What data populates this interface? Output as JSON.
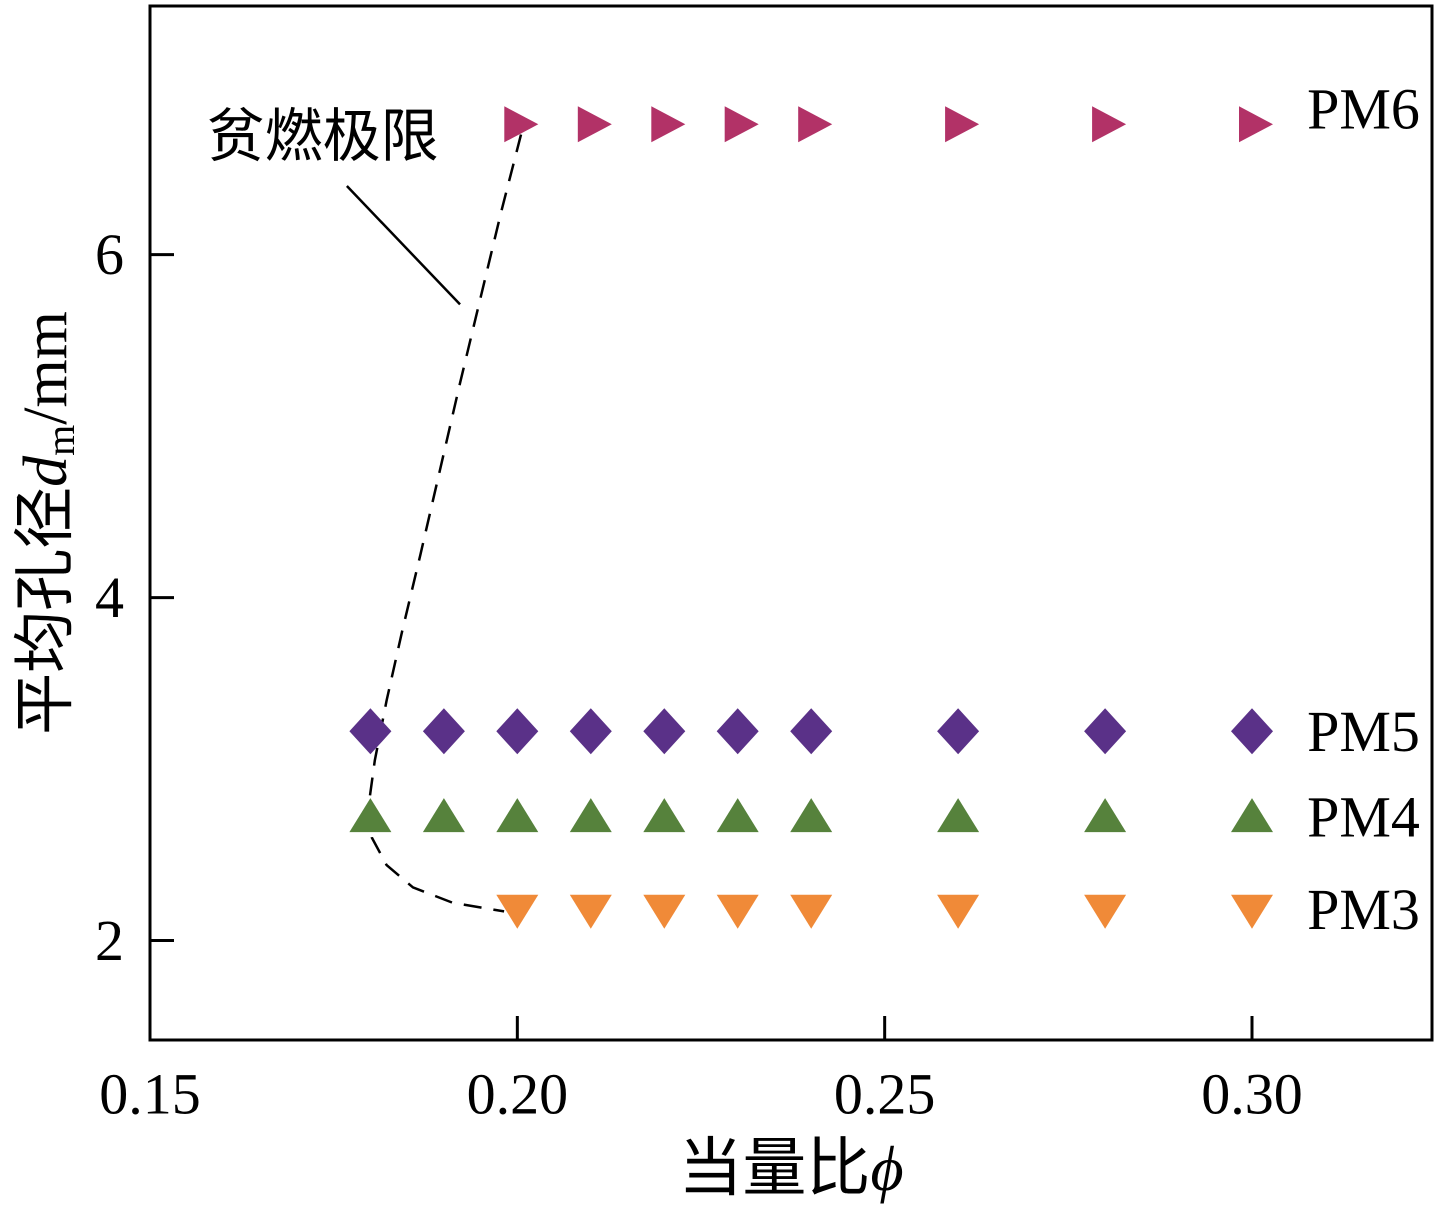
{
  "chart_data": {
    "type": "scatter",
    "title": "",
    "xlabel": {
      "prefix": "当量比",
      "symbol": "ϕ",
      "full": "当量比ϕ"
    },
    "ylabel": {
      "prefix": "平均孔径",
      "var": "d",
      "sub": "m",
      "unit": "/mm",
      "full": "平均孔径dm/mm"
    },
    "xlim": [
      0.15,
      0.3245
    ],
    "ylim": [
      1.42,
      7.45
    ],
    "grid": false,
    "frame": true,
    "xticks": [
      {
        "value": 0.15,
        "label": "0.15"
      },
      {
        "value": 0.2,
        "label": "0.20"
      },
      {
        "value": 0.25,
        "label": "0.25"
      },
      {
        "value": 0.3,
        "label": "0.30"
      }
    ],
    "yticks": [
      {
        "value": 2,
        "label": "2"
      },
      {
        "value": 4,
        "label": "4"
      },
      {
        "value": 6,
        "label": "6"
      }
    ],
    "series": [
      {
        "name": "PM6",
        "marker": "triangle-right",
        "color": "#b23267",
        "y": 6.76,
        "x": [
          0.2,
          0.21,
          0.22,
          0.23,
          0.24,
          0.26,
          0.28,
          0.3
        ],
        "label": "PM6",
        "label_x": 0.3075,
        "label_y": 6.85
      },
      {
        "name": "PM5",
        "marker": "diamond",
        "color": "#5a3188",
        "y": 3.22,
        "x": [
          0.18,
          0.19,
          0.2,
          0.21,
          0.22,
          0.23,
          0.24,
          0.26,
          0.28,
          0.3
        ],
        "label": "PM5",
        "label_x": 0.3075,
        "label_y": 3.22
      },
      {
        "name": "PM4",
        "marker": "triangle-up",
        "color": "#56823c",
        "y": 2.72,
        "x": [
          0.18,
          0.19,
          0.2,
          0.21,
          0.22,
          0.23,
          0.24,
          0.26,
          0.28,
          0.3
        ],
        "label": "PM4",
        "label_x": 0.3075,
        "label_y": 2.72
      },
      {
        "name": "PM3",
        "marker": "triangle-down",
        "color": "#f08a38",
        "y": 2.18,
        "x": [
          0.2,
          0.21,
          0.22,
          0.23,
          0.24,
          0.26,
          0.28,
          0.3
        ],
        "label": "PM3",
        "label_x": 0.3075,
        "label_y": 2.18
      }
    ],
    "annotation": {
      "text": "贫燃极限",
      "text_x": 0.1735,
      "text_y": 6.69,
      "leader_line": [
        [
          0.1768,
          6.4
        ],
        [
          0.1922,
          5.71
        ]
      ]
    },
    "lean_limit_curve": {
      "style": "dashed",
      "color": "#000000",
      "points": [
        [
          0.2005,
          6.7
        ],
        [
          0.1978,
          6.25
        ],
        [
          0.195,
          5.75
        ],
        [
          0.1922,
          5.25
        ],
        [
          0.1895,
          4.75
        ],
        [
          0.1868,
          4.25
        ],
        [
          0.1843,
          3.8
        ],
        [
          0.1822,
          3.4
        ],
        [
          0.1806,
          3.05
        ],
        [
          0.1798,
          2.8
        ],
        [
          0.1802,
          2.6
        ],
        [
          0.1822,
          2.44
        ],
        [
          0.1858,
          2.31
        ],
        [
          0.1912,
          2.22
        ],
        [
          0.1982,
          2.17
        ]
      ]
    }
  }
}
